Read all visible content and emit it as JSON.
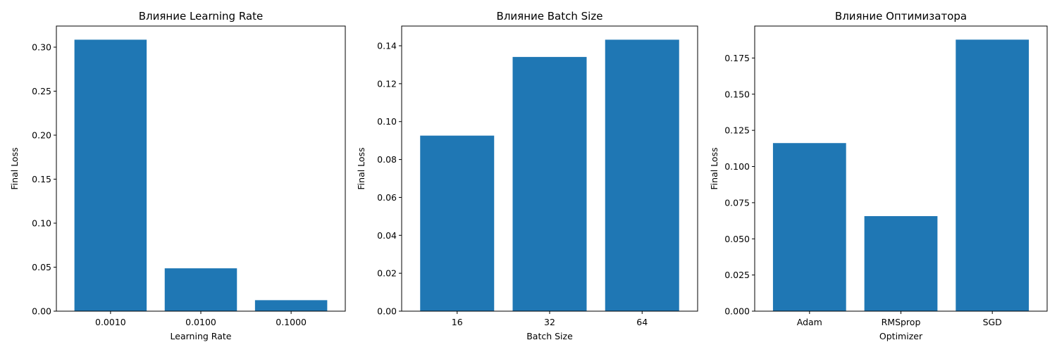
{
  "bar_color": "#1f77b4",
  "chart_data": [
    {
      "type": "bar",
      "title": "Влияние Learning Rate",
      "xlabel": "Learning Rate",
      "ylabel": "Final Loss",
      "categories": [
        "0.0010",
        "0.0100",
        "0.1000"
      ],
      "values": [
        0.3085,
        0.0487,
        0.0125
      ],
      "ylim": [
        0,
        0.324
      ],
      "yticks": [
        0.0,
        0.05,
        0.1,
        0.15,
        0.2,
        0.25,
        0.3
      ],
      "ytick_labels": [
        "0.00",
        "0.05",
        "0.10",
        "0.15",
        "0.20",
        "0.25",
        "0.30"
      ],
      "grid": false,
      "legend": "none"
    },
    {
      "type": "bar",
      "title": "Влияние Batch Size",
      "xlabel": "Batch Size",
      "ylabel": "Final Loss",
      "categories": [
        "16",
        "32",
        "64"
      ],
      "values": [
        0.0926,
        0.1341,
        0.1432
      ],
      "ylim": [
        0,
        0.1504
      ],
      "yticks": [
        0.0,
        0.02,
        0.04,
        0.06,
        0.08,
        0.1,
        0.12,
        0.14
      ],
      "ytick_labels": [
        "0.00",
        "0.02",
        "0.04",
        "0.06",
        "0.08",
        "0.10",
        "0.12",
        "0.14"
      ],
      "grid": false,
      "legend": "none"
    },
    {
      "type": "bar",
      "title": "Влияние Оптимизатора",
      "xlabel": "Optimizer",
      "ylabel": "Final Loss",
      "categories": [
        "Adam",
        "RMSprop",
        "SGD"
      ],
      "values": [
        0.1162,
        0.0657,
        0.1877
      ],
      "ylim": [
        0,
        0.1971
      ],
      "yticks": [
        0.0,
        0.025,
        0.05,
        0.075,
        0.1,
        0.125,
        0.15,
        0.175
      ],
      "ytick_labels": [
        "0.000",
        "0.025",
        "0.050",
        "0.075",
        "0.100",
        "0.125",
        "0.150",
        "0.175"
      ],
      "grid": false,
      "legend": "none"
    }
  ]
}
